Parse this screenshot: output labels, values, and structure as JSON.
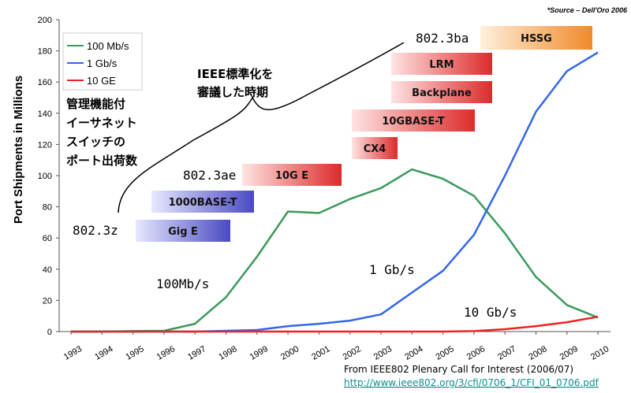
{
  "chart_data": {
    "type": "line",
    "source_note": "*Source – Dell'Oro 2006",
    "ylabel": "Port Shipments in Millions",
    "ylim": [
      0,
      200
    ],
    "yticks": [
      0,
      20,
      40,
      60,
      80,
      100,
      120,
      140,
      160,
      180,
      200
    ],
    "categories": [
      "1993",
      "1994",
      "1995",
      "1996",
      "1997",
      "1998",
      "1999",
      "2000",
      "2001",
      "2002",
      "2003",
      "2004",
      "2005",
      "2006",
      "2007",
      "2008",
      "2009",
      "2010"
    ],
    "series": [
      {
        "name": "100 Mb/s",
        "color": "#3a9a5b",
        "values": [
          0,
          0,
          0.3,
          0.5,
          5,
          22,
          48,
          77,
          76,
          85,
          92,
          104,
          98,
          87,
          63,
          35,
          17,
          9
        ]
      },
      {
        "name": "1 Gb/s",
        "color": "#3366ee",
        "values": [
          0,
          0,
          0,
          0,
          0,
          0.5,
          1,
          3.5,
          5,
          7,
          11,
          25,
          39,
          62,
          100,
          141,
          167,
          179
        ]
      },
      {
        "name": "10 GE",
        "color": "#ee2222",
        "values": [
          0,
          0,
          0,
          0,
          0,
          0,
          0,
          0,
          0,
          0,
          0,
          0,
          0,
          0.3,
          1.5,
          3.5,
          6,
          9.5
        ]
      }
    ],
    "annotations": {
      "label_100mb": "100Mb/s",
      "label_1gb": "1 Gb/s",
      "label_10gb": "10 Gb/s",
      "std_8023z": "802.3z",
      "std_8023ae": "802.3ae",
      "std_8023ba": "802.3ba",
      "ieee_line1": "IEEE標準化を",
      "ieee_line2": "審議した時期",
      "jp_line1": "管理機能付",
      "jp_line2": "イーサネット",
      "jp_line3": "スイッチの",
      "jp_line4": "ポート出荷数"
    },
    "boxes": [
      {
        "label": "Gig E",
        "color": "#5555cc"
      },
      {
        "label": "1000BASE-T",
        "color": "#5555cc"
      },
      {
        "label": "10G E",
        "color": "#dd3333"
      },
      {
        "label": "CX4",
        "color": "#dd3333"
      },
      {
        "label": "10GBASE-T",
        "color": "#dd3333"
      },
      {
        "label": "Backplane",
        "color": "#dd3333"
      },
      {
        "label": "LRM",
        "color": "#dd3333"
      },
      {
        "label": "HSSG",
        "color": "#ee8833"
      }
    ]
  },
  "footer": {
    "credit": "From IEEE802 Plenary Call for Interest (2006/07)",
    "url": "http://www.ieee802.org/3/cfi/0706_1/CFI_01_0706.pdf"
  }
}
